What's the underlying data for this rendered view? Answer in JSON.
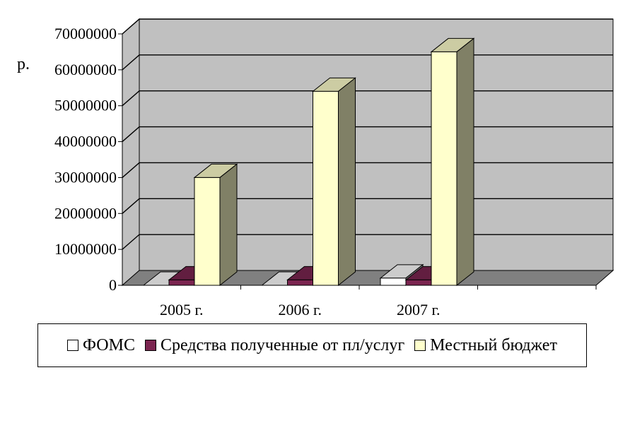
{
  "chart_data": {
    "type": "bar",
    "variant": "3d-clustered-column",
    "title": "",
    "xlabel": "",
    "ylabel": "р.",
    "categories": [
      "2005 г.",
      "2006 г.",
      "2007 г.",
      ""
    ],
    "series": [
      {
        "name": "ФОМС",
        "color": "#ffffff",
        "values": [
          0,
          0,
          2000000,
          0
        ]
      },
      {
        "name": "Средства полученные от пл/услуг",
        "color": "#7b2550",
        "values": [
          1500000,
          1500000,
          1500000,
          0
        ]
      },
      {
        "name": "Местный бюджет",
        "color": "#ffffcc",
        "values": [
          30000000,
          54000000,
          65000000,
          0
        ]
      }
    ],
    "ylim": [
      0,
      70000000
    ],
    "yticks": [
      "0",
      "10000000",
      "20000000",
      "30000000",
      "40000000",
      "50000000",
      "60000000",
      "70000000"
    ],
    "grid": true,
    "legend": "bottom",
    "colors": {
      "wall": "#c0c0c0",
      "floor": "#808080",
      "grid": "#000000"
    }
  }
}
